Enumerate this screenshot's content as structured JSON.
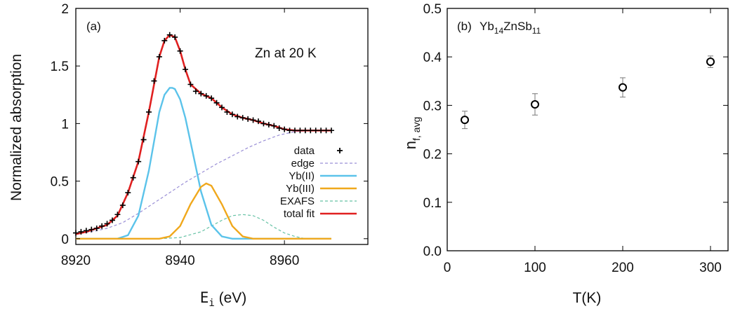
{
  "chart_data": [
    {
      "type": "line",
      "panel_label": "(a)",
      "annotation": "Zn at 20 K",
      "xlabel_main": "E",
      "xlabel_sub": "i",
      "xlabel_unit": " (eV)",
      "ylabel": "Normalized absorption",
      "xlim": [
        8920,
        8976
      ],
      "ylim": [
        -0.05,
        2.0
      ],
      "x_ticks": [
        8920,
        8940,
        8960
      ],
      "y_ticks": [
        0,
        0.5,
        1,
        1.5,
        2
      ],
      "y_tick_labels": [
        "0",
        "0.5",
        "1",
        "1.5",
        "2"
      ],
      "legend_position": "right-middle",
      "series": [
        {
          "name": "data",
          "style": "plus",
          "color": "#000000",
          "x": [
            8920,
            8921,
            8922,
            8923,
            8924,
            8925,
            8926,
            8927,
            8928,
            8929,
            8930,
            8931,
            8932,
            8933,
            8934,
            8935,
            8936,
            8937,
            8938,
            8939,
            8940,
            8941,
            8942,
            8943,
            8944,
            8945,
            8946,
            8947,
            8948,
            8949,
            8950,
            8951,
            8952,
            8953,
            8954,
            8955,
            8956,
            8957,
            8958,
            8959,
            8960,
            8961,
            8962,
            8963,
            8964,
            8965,
            8966,
            8967,
            8968,
            8969
          ],
          "y": [
            0.05,
            0.06,
            0.07,
            0.08,
            0.09,
            0.11,
            0.13,
            0.16,
            0.21,
            0.29,
            0.4,
            0.53,
            0.67,
            0.86,
            1.1,
            1.37,
            1.58,
            1.72,
            1.77,
            1.75,
            1.63,
            1.47,
            1.34,
            1.28,
            1.26,
            1.24,
            1.22,
            1.18,
            1.14,
            1.1,
            1.08,
            1.06,
            1.05,
            1.04,
            1.03,
            1.02,
            1.0,
            0.99,
            0.98,
            0.96,
            0.95,
            0.94,
            0.94,
            0.94,
            0.94,
            0.94,
            0.94,
            0.94,
            0.94,
            0.94
          ]
        },
        {
          "name": "edge",
          "style": "dashed",
          "color": "#9a8fd6",
          "x": [
            8920,
            8923,
            8926,
            8929,
            8932,
            8935,
            8938,
            8941,
            8944,
            8947,
            8950,
            8953,
            8956,
            8959,
            8962,
            8965,
            8969
          ],
          "y": [
            0.04,
            0.06,
            0.09,
            0.14,
            0.22,
            0.31,
            0.4,
            0.49,
            0.57,
            0.65,
            0.72,
            0.79,
            0.85,
            0.9,
            0.93,
            0.94,
            0.94
          ]
        },
        {
          "name": "Yb(II)",
          "style": "solid",
          "color": "#5bc3ea",
          "x": [
            8920,
            8928,
            8930,
            8932,
            8934,
            8936,
            8937,
            8938,
            8938.5,
            8939,
            8940,
            8941,
            8942,
            8944,
            8946,
            8948,
            8950,
            8952,
            8969
          ],
          "y": [
            0.0,
            0.0,
            0.03,
            0.2,
            0.59,
            1.1,
            1.25,
            1.31,
            1.31,
            1.3,
            1.21,
            1.05,
            0.84,
            0.41,
            0.12,
            0.02,
            0.0,
            0.0,
            0.0
          ]
        },
        {
          "name": "Yb(III)",
          "style": "solid",
          "color": "#f0a81c",
          "x": [
            8920,
            8936,
            8938,
            8940,
            8942,
            8944,
            8945,
            8946,
            8948,
            8950,
            8952,
            8954,
            8969
          ],
          "y": [
            0.0,
            0.0,
            0.02,
            0.11,
            0.3,
            0.45,
            0.48,
            0.46,
            0.3,
            0.11,
            0.02,
            0.0,
            0.0
          ]
        },
        {
          "name": "EXAFS",
          "style": "dashed",
          "color": "#66c2a5",
          "x": [
            8936,
            8940,
            8944,
            8946,
            8948,
            8950,
            8952,
            8954,
            8956,
            8958,
            8960,
            8962,
            8964
          ],
          "y": [
            0.0,
            0.01,
            0.06,
            0.11,
            0.16,
            0.2,
            0.21,
            0.2,
            0.16,
            0.1,
            0.05,
            0.02,
            0.0
          ]
        },
        {
          "name": "total fit",
          "style": "solid",
          "color": "#e02020",
          "x": [
            8920,
            8922,
            8924,
            8926,
            8928,
            8930,
            8932,
            8934,
            8936,
            8937,
            8938,
            8939,
            8940,
            8941,
            8942,
            8944,
            8946,
            8948,
            8950,
            8952,
            8954,
            8956,
            8958,
            8960,
            8962,
            8964,
            8966,
            8969
          ],
          "y": [
            0.04,
            0.06,
            0.09,
            0.12,
            0.2,
            0.4,
            0.67,
            1.1,
            1.58,
            1.72,
            1.77,
            1.75,
            1.63,
            1.47,
            1.34,
            1.26,
            1.22,
            1.14,
            1.08,
            1.05,
            1.03,
            1.0,
            0.98,
            0.95,
            0.94,
            0.94,
            0.94,
            0.94
          ]
        }
      ]
    },
    {
      "type": "scatter",
      "panel_label": "(b)",
      "compound": {
        "parts": [
          {
            "text": "Yb",
            "sub": false
          },
          {
            "text": "14",
            "sub": true
          },
          {
            "text": "ZnSb",
            "sub": false
          },
          {
            "text": "11",
            "sub": true
          }
        ]
      },
      "xlabel": "T(K)",
      "ylabel_main": "n",
      "ylabel_sub": "f, avg",
      "xlim": [
        0,
        320
      ],
      "ylim": [
        0.0,
        0.5
      ],
      "x_ticks": [
        0,
        100,
        200,
        300
      ],
      "y_ticks": [
        0.0,
        0.1,
        0.2,
        0.3,
        0.4,
        0.5
      ],
      "y_tick_labels": [
        "0.0",
        "0.1",
        "0.2",
        "0.3",
        "0.4",
        "0.5"
      ],
      "grid": false,
      "series": [
        {
          "marker": "open-circle",
          "color": "#000000",
          "x": [
            20,
            100,
            200,
            300
          ],
          "y": [
            0.27,
            0.302,
            0.337,
            0.39
          ],
          "yerr": [
            0.018,
            0.022,
            0.02,
            0.012
          ]
        }
      ]
    }
  ]
}
